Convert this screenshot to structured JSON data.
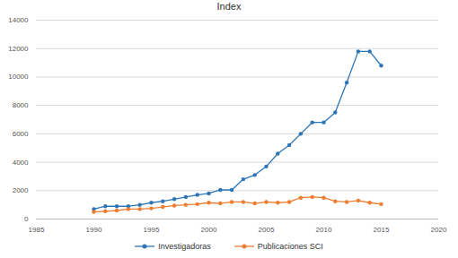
{
  "chart_data": {
    "type": "line",
    "title": "Index",
    "x": [
      1990,
      1991,
      1992,
      1993,
      1994,
      1995,
      1996,
      1997,
      1998,
      1999,
      2000,
      2001,
      2002,
      2003,
      2004,
      2005,
      2006,
      2007,
      2008,
      2009,
      2010,
      2011,
      2012,
      2013,
      2014,
      2015
    ],
    "series": [
      {
        "name": "Investigadoras",
        "color": "#2e75b6",
        "marker": "circle",
        "values": [
          700,
          900,
          900,
          900,
          1000,
          1150,
          1250,
          1400,
          1550,
          1700,
          1800,
          2050,
          2050,
          2800,
          3100,
          3700,
          4600,
          5200,
          6000,
          6800,
          6800,
          7500,
          9600,
          11800,
          11800,
          10800
        ]
      },
      {
        "name": "Publicaciones SCI",
        "color": "#ed7d31",
        "marker": "circle",
        "values": [
          500,
          550,
          600,
          700,
          700,
          750,
          850,
          950,
          1000,
          1050,
          1150,
          1100,
          1200,
          1200,
          1100,
          1200,
          1150,
          1200,
          1500,
          1550,
          1500,
          1250,
          1200,
          1300,
          1150,
          1050
        ]
      }
    ],
    "xlim": [
      1985,
      2020
    ],
    "xticks": [
      1985,
      1990,
      1995,
      2000,
      2005,
      2010,
      2015,
      2020
    ],
    "ylim": [
      0,
      14000
    ],
    "yticks": [
      0,
      2000,
      4000,
      6000,
      8000,
      10000,
      12000,
      14000
    ],
    "grid": true,
    "legend": "bottom"
  }
}
